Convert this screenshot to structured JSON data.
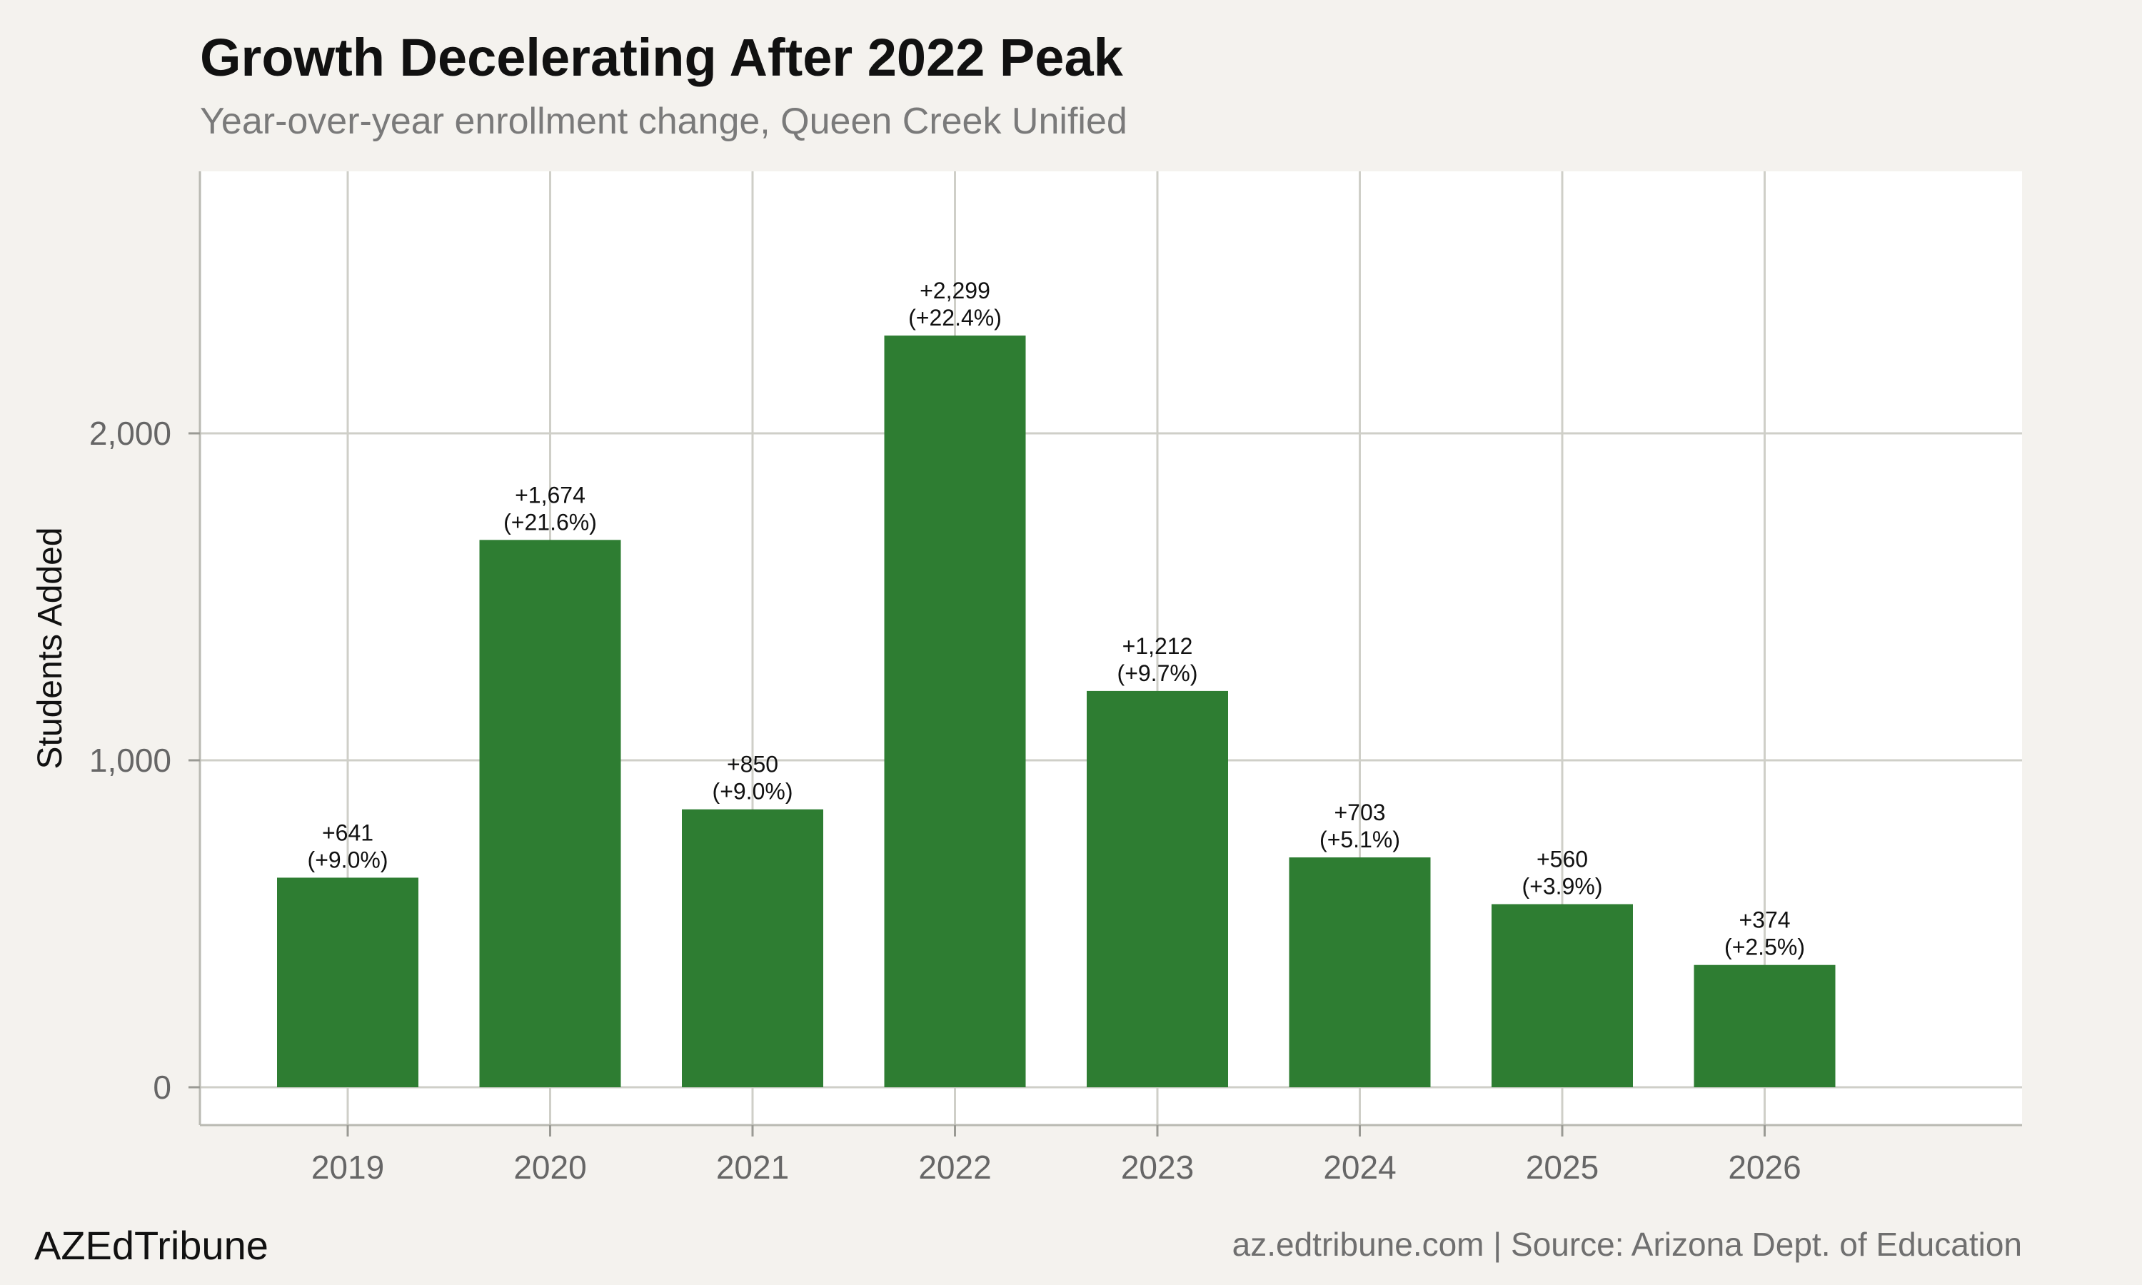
{
  "title": "Growth Decelerating After 2022 Peak",
  "subtitle": "Year-over-year enrollment change, Queen Creek Unified",
  "footer": {
    "brand": "AZEdTribune",
    "source": "az.edtribune.com | Source: Arizona Dept. of Education"
  },
  "colors": {
    "bar": "#2e7d32",
    "background": "#f4f2ee",
    "panel": "#ffffff",
    "grid": "#cfcfc8"
  },
  "chart_data": {
    "type": "bar",
    "categories": [
      "2019",
      "2020",
      "2021",
      "2022",
      "2023",
      "2024",
      "2025",
      "2026"
    ],
    "values": [
      641,
      1674,
      850,
      2299,
      1212,
      703,
      560,
      374
    ],
    "labels": [
      [
        "+641",
        "(+9.0%)"
      ],
      [
        "+1,674",
        "(+21.6%)"
      ],
      [
        "+850",
        "(+9.0%)"
      ],
      [
        "+2,299",
        "(+22.4%)"
      ],
      [
        "+1,212",
        "(+9.7%)"
      ],
      [
        "+703",
        "(+5.1%)"
      ],
      [
        "+560",
        "(+3.9%)"
      ],
      [
        "+374",
        "(+2.5%)"
      ]
    ],
    "ylabel": "Students Added",
    "xlabel": "",
    "yticks": [
      0,
      1000,
      2000
    ],
    "ytick_labels": [
      "0",
      "1,000",
      "2,000"
    ],
    "ylim": [
      -115,
      2800
    ],
    "grid": true
  }
}
